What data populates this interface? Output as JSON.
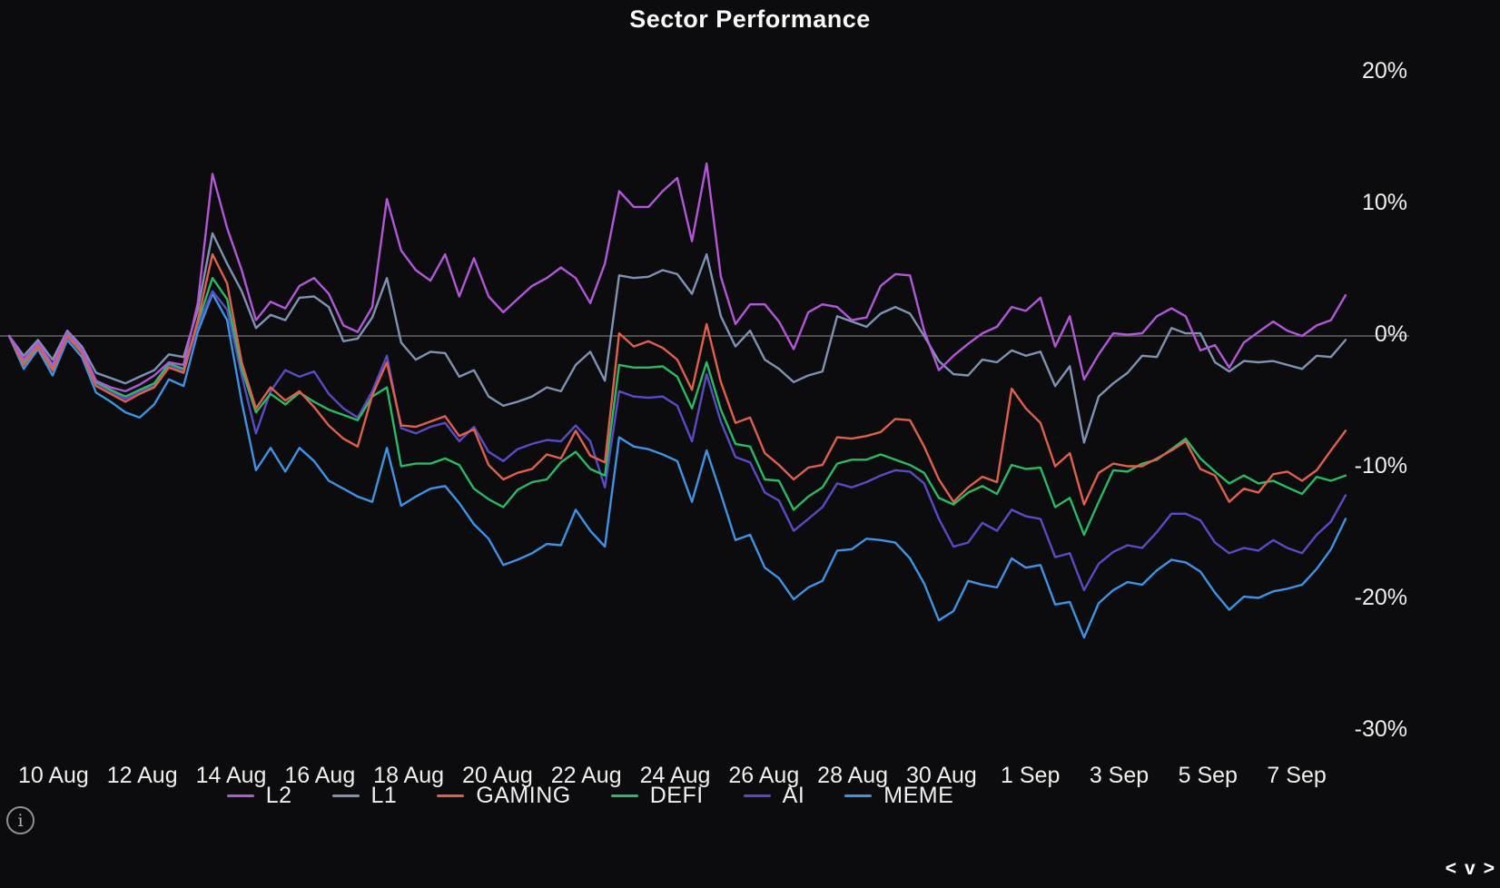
{
  "title": "Sector Performance",
  "colors": {
    "background": "#0c0c0e",
    "text": "#f2f2f2",
    "zero_line": "#8f8f8f"
  },
  "footer": {
    "info_glyph": "i",
    "pager": [
      "<",
      "v",
      ">"
    ]
  },
  "chart_data": {
    "type": "line",
    "title": "Sector Performance",
    "xlabel": "",
    "ylabel": "",
    "x_unit": "days (10 Aug = day 1)",
    "ylim": [
      -32,
      22
    ],
    "xlim": [
      0,
      30.6
    ],
    "grid": "zero-line-only",
    "legend_position": "bottom-center",
    "y_ticks": [
      {
        "value": 20,
        "label": "20%"
      },
      {
        "value": 10,
        "label": "10%"
      },
      {
        "value": 0,
        "label": "0%"
      },
      {
        "value": -10,
        "label": "-10%"
      },
      {
        "value": -20,
        "label": "-20%"
      },
      {
        "value": -30,
        "label": "-30%"
      }
    ],
    "x_ticks": [
      {
        "day": 1,
        "label": "10 Aug"
      },
      {
        "day": 3,
        "label": "12 Aug"
      },
      {
        "day": 5,
        "label": "14 Aug"
      },
      {
        "day": 7,
        "label": "16 Aug"
      },
      {
        "day": 9,
        "label": "18 Aug"
      },
      {
        "day": 11,
        "label": "20 Aug"
      },
      {
        "day": 13,
        "label": "22 Aug"
      },
      {
        "day": 15,
        "label": "24 Aug"
      },
      {
        "day": 17,
        "label": "26 Aug"
      },
      {
        "day": 19,
        "label": "28 Aug"
      },
      {
        "day": 21,
        "label": "30 Aug"
      },
      {
        "day": 23,
        "label": "1 Sep"
      },
      {
        "day": 25,
        "label": "3 Sep"
      },
      {
        "day": 27,
        "label": "5 Sep"
      },
      {
        "day": 29,
        "label": "7 Sep"
      }
    ],
    "x": [
      0,
      0.33,
      0.65,
      0.98,
      1.31,
      1.64,
      1.96,
      2.29,
      2.62,
      2.94,
      3.27,
      3.6,
      3.93,
      4.25,
      4.58,
      4.91,
      5.24,
      5.56,
      5.89,
      6.22,
      6.54,
      6.87,
      7.2,
      7.53,
      7.85,
      8.18,
      8.51,
      8.83,
      9.16,
      9.49,
      9.82,
      10.14,
      10.47,
      10.8,
      11.13,
      11.45,
      11.78,
      12.11,
      12.43,
      12.76,
      13.09,
      13.42,
      13.74,
      14.07,
      14.4,
      14.72,
      15.05,
      15.38,
      15.71,
      16.03,
      16.36,
      16.69,
      17.02,
      17.34,
      17.67,
      18.0,
      18.32,
      18.65,
      18.98,
      19.31,
      19.63,
      19.96,
      20.29,
      20.61,
      20.94,
      21.27,
      21.6,
      21.92,
      22.25,
      22.58,
      22.9,
      23.23,
      23.56,
      23.89,
      24.21,
      24.54,
      24.87,
      25.19,
      25.52,
      25.85,
      26.18,
      26.5,
      26.83,
      27.16,
      27.48,
      27.81,
      28.14,
      28.47,
      28.79,
      29.12,
      29.45,
      29.77,
      30.1
    ],
    "series": [
      {
        "name": "L2",
        "color": "#b357d9",
        "values": [
          0,
          -1.8,
          -0.5,
          -2.2,
          0.3,
          -1,
          -3.4,
          -3.9,
          -4.2,
          -3.7,
          -3,
          -2,
          -2.2,
          2.5,
          12.3,
          8.2,
          5,
          1.2,
          2.6,
          2.1,
          3.8,
          4.4,
          3.2,
          0.8,
          0.3,
          2.2,
          10.4,
          6.5,
          5,
          4.2,
          6.2,
          3,
          5.9,
          3,
          1.8,
          2.8,
          3.8,
          4.4,
          5.2,
          4.4,
          2.5,
          5.5,
          11,
          9.8,
          9.8,
          11,
          12,
          7.2,
          13.1,
          4.5,
          0.9,
          2.4,
          2.4,
          1.1,
          -1,
          1.8,
          2.4,
          2.2,
          1.2,
          1.4,
          3.8,
          4.7,
          4.6,
          0.4,
          -2.6,
          -1.5,
          -0.6,
          0.2,
          0.7,
          2.2,
          1.9,
          2.9,
          -0.8,
          1.5,
          -3.3,
          -1.4,
          0.2,
          0.1,
          0.2,
          1.5,
          2.1,
          1.5,
          -1.1,
          -0.7,
          -2.4,
          -0.5,
          0.3,
          1.1,
          0.4,
          0,
          0.8,
          1.2,
          3.1
        ]
      },
      {
        "name": "L1",
        "color": "#7e93b4",
        "values": [
          0,
          -1.5,
          -0.3,
          -1.8,
          0.4,
          -0.8,
          -2.8,
          -3.2,
          -3.6,
          -3.1,
          -2.6,
          -1.4,
          -1.6,
          2,
          7.8,
          5.5,
          3.4,
          0.6,
          1.6,
          1.2,
          2.9,
          3,
          2.2,
          -0.4,
          -0.2,
          1.4,
          4.4,
          -0.5,
          -1.8,
          -1.2,
          -1.3,
          -3.1,
          -2.6,
          -4.6,
          -5.3,
          -5,
          -4.6,
          -3.9,
          -4.2,
          -2.2,
          -1.2,
          -3.4,
          4.6,
          4.4,
          4.5,
          5,
          4.7,
          3.2,
          6.2,
          1.5,
          -0.8,
          0.4,
          -1.8,
          -2.5,
          -3.5,
          -3,
          -2.7,
          1.5,
          1.1,
          0.7,
          1.7,
          2.2,
          1.7,
          0,
          -1.9,
          -2.9,
          -3,
          -1.8,
          -2,
          -1.1,
          -1.5,
          -1.2,
          -3.8,
          -2.3,
          -8.1,
          -4.6,
          -3.6,
          -2.8,
          -1.5,
          -1.6,
          0.6,
          0.2,
          0.2,
          -2,
          -2.7,
          -1.9,
          -2,
          -1.9,
          -2.2,
          -2.5,
          -1.5,
          -1.6,
          -0.3
        ]
      },
      {
        "name": "GAMING",
        "color": "#e0604a",
        "values": [
          0,
          -2.2,
          -0.8,
          -2.6,
          0,
          -1.3,
          -3.8,
          -4.4,
          -5,
          -4.4,
          -3.9,
          -2.4,
          -2.8,
          1.2,
          6.2,
          4,
          -2,
          -5.5,
          -3.9,
          -4.9,
          -4.2,
          -5.4,
          -6.8,
          -7.8,
          -8.4,
          -4.5,
          -2,
          -6.8,
          -6.9,
          -6.5,
          -6.1,
          -7.6,
          -7.1,
          -9.8,
          -10.9,
          -10.4,
          -10.1,
          -9,
          -9.3,
          -7.2,
          -9.1,
          -9.6,
          0.2,
          -0.8,
          -0.4,
          -0.9,
          -1.8,
          -4.1,
          0.9,
          -3.5,
          -6.6,
          -6.2,
          -8.9,
          -9.8,
          -10.9,
          -10,
          -9.8,
          -7.7,
          -7.8,
          -7.6,
          -7.3,
          -6.3,
          -6.4,
          -8.4,
          -10.9,
          -12.6,
          -11.5,
          -10.7,
          -11.1,
          -4,
          -5.5,
          -6.6,
          -9.9,
          -8.9,
          -12.8,
          -10.4,
          -9.7,
          -9.9,
          -9.9,
          -9.3,
          -8.7,
          -8,
          -10.1,
          -10.6,
          -12.6,
          -11.6,
          -11.9,
          -10.5,
          -10.3,
          -11,
          -10.2,
          -8.7,
          -7.2
        ]
      },
      {
        "name": "DEFI",
        "color": "#2aba64",
        "values": [
          0,
          -2,
          -0.6,
          -2.4,
          0.1,
          -1.1,
          -3.5,
          -4.1,
          -4.6,
          -4.1,
          -3.6,
          -2.1,
          -2.5,
          1,
          4.4,
          2.8,
          -2.5,
          -5.8,
          -4.4,
          -5.2,
          -4.3,
          -5,
          -5.6,
          -6,
          -6.4,
          -4.6,
          -3.9,
          -9.9,
          -9.7,
          -9.7,
          -9.3,
          -9.8,
          -11.6,
          -12.4,
          -13,
          -11.7,
          -11.1,
          -10.9,
          -9.6,
          -8.8,
          -10.1,
          -10.6,
          -2.2,
          -2.4,
          -2.4,
          -2.3,
          -3.1,
          -5.5,
          -2,
          -5.6,
          -8.2,
          -8.4,
          -10.9,
          -11,
          -13.2,
          -12.2,
          -11.5,
          -9.7,
          -9.4,
          -9.4,
          -9,
          -9.4,
          -9.8,
          -10.4,
          -12.3,
          -12.8,
          -11.9,
          -11.4,
          -12,
          -9.8,
          -10.1,
          -10,
          -13,
          -12.3,
          -15.1,
          -12.6,
          -10.2,
          -10.3,
          -9.7,
          -9.4,
          -8.6,
          -7.8,
          -9.3,
          -10.3,
          -11.2,
          -10.6,
          -11.2,
          -11,
          -11.5,
          -12,
          -10.7,
          -11,
          -10.6
        ]
      },
      {
        "name": "AI",
        "color": "#584cc6",
        "values": [
          0,
          -2.1,
          -0.7,
          -2.5,
          -0.1,
          -1.2,
          -3.6,
          -4.2,
          -4.8,
          -4.2,
          -3.8,
          -2.2,
          -2.7,
          0.8,
          3.4,
          2,
          -3,
          -7.4,
          -4.2,
          -2.6,
          -3.1,
          -2.7,
          -4.4,
          -5.5,
          -6.2,
          -4.2,
          -1.5,
          -7,
          -7.4,
          -6.9,
          -6.6,
          -8,
          -6.9,
          -8.8,
          -9.5,
          -8.6,
          -8.2,
          -7.9,
          -8,
          -6.8,
          -8,
          -11.5,
          -4.2,
          -4.6,
          -4.7,
          -4.6,
          -5.3,
          -8,
          -2.9,
          -6.5,
          -9.2,
          -9.6,
          -11.9,
          -12.5,
          -14.8,
          -13.9,
          -13,
          -11.2,
          -11.5,
          -11.1,
          -10.6,
          -10.2,
          -10.3,
          -11.2,
          -13.9,
          -16,
          -15.7,
          -14.2,
          -14.8,
          -13.2,
          -13.7,
          -13.9,
          -16.8,
          -16.5,
          -19.3,
          -17.3,
          -16.4,
          -15.9,
          -16.1,
          -14.9,
          -13.5,
          -13.5,
          -14,
          -15.7,
          -16.5,
          -16.1,
          -16.3,
          -15.5,
          -16.1,
          -16.5,
          -15.1,
          -14.1,
          -12.1
        ]
      },
      {
        "name": "MEME",
        "color": "#3f93e4",
        "values": [
          0,
          -2.5,
          -1,
          -3,
          -0.3,
          -1.6,
          -4.3,
          -5,
          -5.8,
          -6.2,
          -5.2,
          -3.3,
          -3.8,
          0.3,
          3.2,
          1.2,
          -5,
          -10.2,
          -8.5,
          -10.3,
          -8.5,
          -9.5,
          -11,
          -11.6,
          -12.2,
          -12.6,
          -8.5,
          -12.9,
          -12.2,
          -11.6,
          -11.4,
          -12.7,
          -14.3,
          -15.4,
          -17.4,
          -17,
          -16.5,
          -15.8,
          -15.9,
          -13.2,
          -14.8,
          -16,
          -7.7,
          -8.4,
          -8.6,
          -9,
          -9.5,
          -12.6,
          -8.7,
          -12,
          -15.5,
          -15.1,
          -17.6,
          -18.4,
          -20,
          -19.1,
          -18.6,
          -16.3,
          -16.2,
          -15.4,
          -15.5,
          -15.7,
          -16.9,
          -18.8,
          -21.6,
          -20.9,
          -18.6,
          -18.9,
          -19.1,
          -16.9,
          -17.6,
          -17.4,
          -20.4,
          -20.2,
          -22.9,
          -20.3,
          -19.3,
          -18.7,
          -18.9,
          -17.8,
          -17,
          -17.2,
          -17.9,
          -19.5,
          -20.8,
          -19.8,
          -19.9,
          -19.4,
          -19.2,
          -18.9,
          -17.7,
          -16.2,
          -13.9
        ]
      }
    ]
  }
}
